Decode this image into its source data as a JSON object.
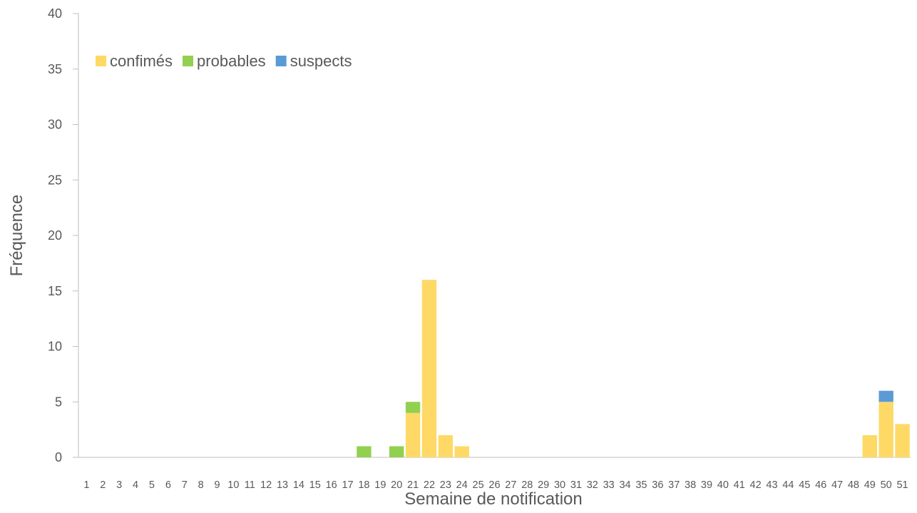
{
  "chart_data": {
    "type": "bar",
    "stacked": true,
    "title": "",
    "xlabel": "Semaine de notification",
    "ylabel": "Fréquence",
    "ylim": [
      0,
      40
    ],
    "yticks": [
      0,
      5,
      10,
      15,
      20,
      25,
      30,
      35,
      40
    ],
    "grid": false,
    "legend_position": "top-left",
    "categories": [
      "1",
      "2",
      "3",
      "4",
      "5",
      "6",
      "7",
      "8",
      "9",
      "10",
      "11",
      "12",
      "13",
      "14",
      "15",
      "16",
      "17",
      "18",
      "19",
      "20",
      "21",
      "22",
      "23",
      "24",
      "25",
      "26",
      "27",
      "28",
      "29",
      "30",
      "31",
      "32",
      "33",
      "34",
      "35",
      "36",
      "37",
      "38",
      "39",
      "40",
      "41",
      "42",
      "43",
      "44",
      "45",
      "46",
      "47",
      "48",
      "49",
      "50",
      "51"
    ],
    "series": [
      {
        "name": "confimés",
        "color": "#FFD966",
        "values": [
          0,
          0,
          0,
          0,
          0,
          0,
          0,
          0,
          0,
          0,
          0,
          0,
          0,
          0,
          0,
          0,
          0,
          0,
          0,
          0,
          4,
          16,
          2,
          1,
          0,
          0,
          0,
          0,
          0,
          0,
          0,
          0,
          0,
          0,
          0,
          0,
          0,
          0,
          0,
          0,
          0,
          0,
          0,
          0,
          0,
          0,
          0,
          0,
          2,
          5,
          3
        ]
      },
      {
        "name": "probables",
        "color": "#92D050",
        "values": [
          0,
          0,
          0,
          0,
          0,
          0,
          0,
          0,
          0,
          0,
          0,
          0,
          0,
          0,
          0,
          0,
          0,
          1,
          0,
          1,
          1,
          0,
          0,
          0,
          0,
          0,
          0,
          0,
          0,
          0,
          0,
          0,
          0,
          0,
          0,
          0,
          0,
          0,
          0,
          0,
          0,
          0,
          0,
          0,
          0,
          0,
          0,
          0,
          0,
          0,
          0
        ]
      },
      {
        "name": "suspects",
        "color": "#5B9BD5",
        "values": [
          0,
          0,
          0,
          0,
          0,
          0,
          0,
          0,
          0,
          0,
          0,
          0,
          0,
          0,
          0,
          0,
          0,
          0,
          0,
          0,
          0,
          0,
          0,
          0,
          0,
          0,
          0,
          0,
          0,
          0,
          0,
          0,
          0,
          0,
          0,
          0,
          0,
          0,
          0,
          0,
          0,
          0,
          0,
          0,
          0,
          0,
          0,
          0,
          0,
          1,
          0
        ]
      }
    ]
  }
}
